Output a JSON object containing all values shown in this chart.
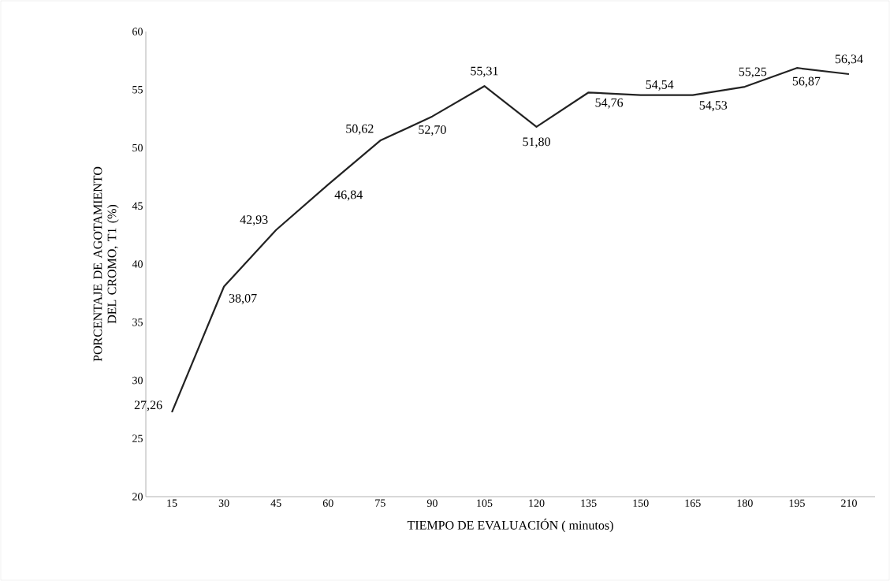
{
  "chart_data": {
    "type": "line",
    "xlabel": "TIEMPO DE EVALUACIÓN ( minutos)",
    "ylabel": "PORCENTAJE DE AGOTAMIENTO DEL CROMO,  T1 (%)",
    "categories": [
      "15",
      "30",
      "45",
      "60",
      "75",
      "90",
      "105",
      "120",
      "135",
      "150",
      "165",
      "180",
      "195",
      "210"
    ],
    "series": [
      {
        "color": "#222222",
        "values": [
          27.26,
          38.07,
          42.93,
          46.84,
          50.62,
          52.7,
          55.31,
          51.8,
          54.76,
          54.54,
          54.53,
          55.25,
          56.87,
          56.34
        ],
        "value_labels": [
          "27,26",
          "38,07",
          "42,93",
          "46,84",
          "50,62",
          "52,70",
          "55,31",
          "51,80",
          "54,76",
          "54,54",
          "54,53",
          "55,25",
          "56,87",
          "56,34"
        ]
      }
    ],
    "ylim": [
      20,
      60
    ],
    "yticks": [
      20,
      25,
      30,
      35,
      40,
      45,
      50,
      55,
      60
    ],
    "grid": false,
    "marker": "none",
    "line_style": "solid"
  }
}
